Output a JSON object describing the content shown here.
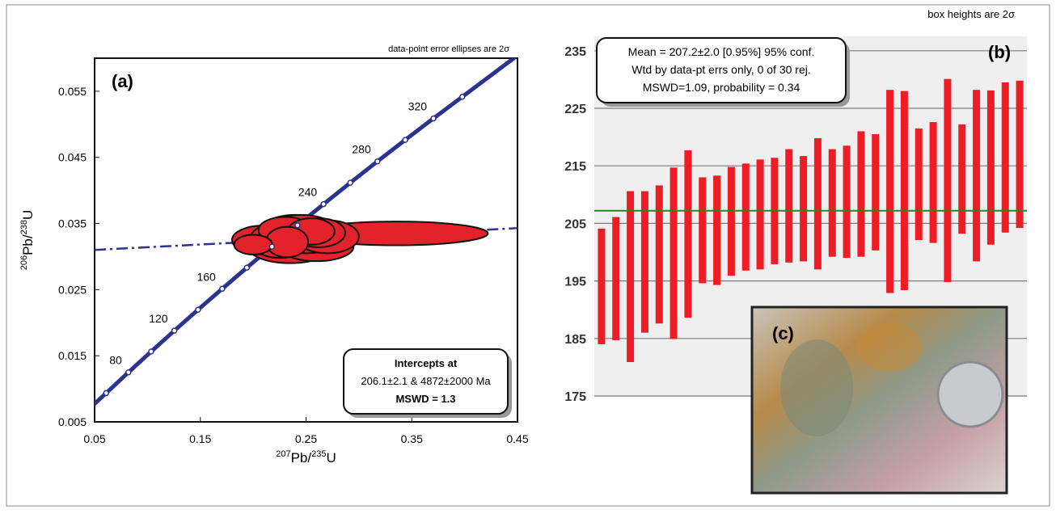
{
  "chart_data": [
    {
      "type": "concordia",
      "label": "(a)",
      "note": "data-point error ellipses are 2σ",
      "xlabel": [
        "207",
        "Pb/",
        "235",
        "U"
      ],
      "ylabel": [
        "206",
        "Pb/",
        "238",
        "U"
      ],
      "xlim": [
        0.05,
        0.45
      ],
      "ylim": [
        0.005,
        0.06
      ],
      "xticks": [
        0.05,
        0.15,
        0.25,
        0.35,
        0.45
      ],
      "yticks": [
        0.005,
        0.015,
        0.025,
        0.035,
        0.045,
        0.055
      ],
      "curve_color": "#2b3390",
      "ellipse_color": "#e3222b",
      "markers": {
        "age": [
          60,
          80,
          100,
          120,
          140,
          160,
          180,
          200,
          220,
          240,
          260,
          280,
          300,
          320,
          340
        ],
        "x": [
          0.0609,
          0.082,
          0.1035,
          0.1254,
          0.1478,
          0.1707,
          0.194,
          0.2177,
          0.2419,
          0.2666,
          0.2918,
          0.3175,
          0.3438,
          0.3705,
          0.3978
        ],
        "y": [
          0.00935,
          0.01249,
          0.01563,
          0.01879,
          0.02196,
          0.02513,
          0.02832,
          0.03151,
          0.03472,
          0.03793,
          0.04116,
          0.04439,
          0.04764,
          0.05089,
          0.05416
        ]
      },
      "age_labels": [
        80,
        120,
        160,
        240,
        280,
        320
      ],
      "discordia": {
        "x": [
          0.05,
          0.45
        ],
        "y": [
          0.031,
          0.0343
        ]
      },
      "ellipses": {
        "x": [
          0.21,
          0.235,
          0.24,
          0.25,
          0.23,
          0.26,
          0.225,
          0.245,
          0.27,
          0.2,
          0.255,
          0.232,
          0.262,
          0.335
        ],
        "y": [
          0.0325,
          0.0315,
          0.0335,
          0.0325,
          0.034,
          0.0315,
          0.0325,
          0.0345,
          0.033,
          0.0318,
          0.0338,
          0.0322,
          0.0336,
          0.0335
        ],
        "sx": [
          0.03,
          0.04,
          0.035,
          0.03,
          0.025,
          0.035,
          0.028,
          0.03,
          0.03,
          0.018,
          0.022,
          0.02,
          0.025,
          0.087
        ],
        "sy": [
          0.0022,
          0.0025,
          0.0028,
          0.002,
          0.002,
          0.0022,
          0.0027,
          0.0018,
          0.0025,
          0.0015,
          0.002,
          0.0023,
          0.0022,
          0.0018
        ]
      },
      "box": [
        "Intercepts at",
        "206.1±2.1 & 4872±2000 Ma",
        "MSWD = 1.3"
      ]
    },
    {
      "type": "errorbar",
      "label": "(b)",
      "note": "box heights are 2σ",
      "ylim": [
        175,
        237.5
      ],
      "yticks": [
        175,
        185,
        195,
        205,
        215,
        225,
        235
      ],
      "grid": true,
      "color": "#ee1c25",
      "mean": 207.2,
      "mean_color": "#1f8a1f",
      "high": [
        204.1,
        206.1,
        210.6,
        210.6,
        211.6,
        214.7,
        217.7,
        213.0,
        213.3,
        214.8,
        215.4,
        216.1,
        216.4,
        217.9,
        216.7,
        219.8,
        217.9,
        218.5,
        221.0,
        220.5,
        228.2,
        228.0,
        221.5,
        222.6,
        230.1,
        222.2,
        228.2,
        228.1,
        229.5,
        229.8
      ],
      "low": [
        184.0,
        184.7,
        180.9,
        186.0,
        187.6,
        184.9,
        188.6,
        194.6,
        194.3,
        195.9,
        196.8,
        197.0,
        197.9,
        198.2,
        198.4,
        197.0,
        199.2,
        199.0,
        199.2,
        200.3,
        192.9,
        193.4,
        202.1,
        201.6,
        194.8,
        203.2,
        198.4,
        201.3,
        203.4,
        204.2
      ],
      "box": [
        "Mean = 207.2±2.0 [0.95%] 95% conf.",
        "Wtd by data-pt errs only, 0 of 30 rej.",
        "MSWD=1.09, probability = 0.34"
      ]
    }
  ],
  "photo": {
    "label": "(c)"
  }
}
